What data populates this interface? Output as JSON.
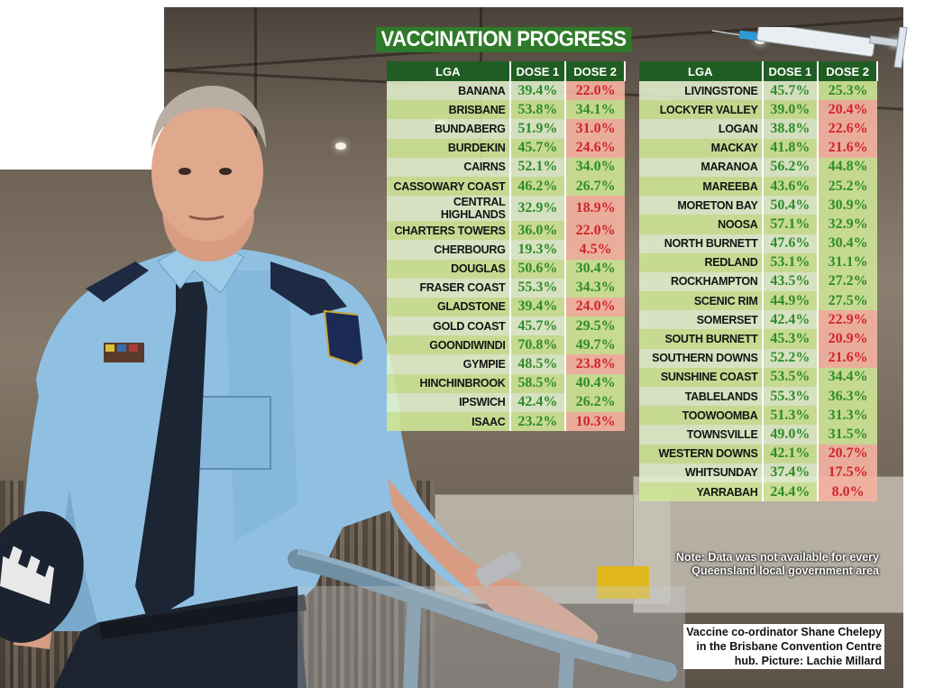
{
  "title": "VACCINATION PROGRESS",
  "chart_data": {
    "type": "table",
    "columns": [
      "LGA",
      "DOSE 1",
      "DOSE 2"
    ],
    "tables": [
      {
        "rows": [
          {
            "lga": "BANANA",
            "dose1": "39.4%",
            "dose2": "22.0%",
            "dose2_status": "red"
          },
          {
            "lga": "BRISBANE",
            "dose1": "53.8%",
            "dose2": "34.1%",
            "dose2_status": "green"
          },
          {
            "lga": "BUNDABERG",
            "dose1": "51.9%",
            "dose2": "31.0%",
            "dose2_status": "red"
          },
          {
            "lga": "BURDEKIN",
            "dose1": "45.7%",
            "dose2": "24.6%",
            "dose2_status": "red"
          },
          {
            "lga": "CAIRNS",
            "dose1": "52.1%",
            "dose2": "34.0%",
            "dose2_status": "green"
          },
          {
            "lga": "CASSOWARY COAST",
            "dose1": "46.2%",
            "dose2": "26.7%",
            "dose2_status": "green"
          },
          {
            "lga": "CENTRAL HIGHLANDS",
            "dose1": "32.9%",
            "dose2": "18.9%",
            "dose2_status": "red"
          },
          {
            "lga": "CHARTERS TOWERS",
            "dose1": "36.0%",
            "dose2": "22.0%",
            "dose2_status": "red"
          },
          {
            "lga": "CHERBOURG",
            "dose1": "19.3%",
            "dose2": "4.5%",
            "dose2_status": "red"
          },
          {
            "lga": "DOUGLAS",
            "dose1": "50.6%",
            "dose2": "30.4%",
            "dose2_status": "green"
          },
          {
            "lga": "FRASER COAST",
            "dose1": "55.3%",
            "dose2": "34.3%",
            "dose2_status": "green"
          },
          {
            "lga": "GLADSTONE",
            "dose1": "39.4%",
            "dose2": "24.0%",
            "dose2_status": "red"
          },
          {
            "lga": "GOLD COAST",
            "dose1": "45.7%",
            "dose2": "29.5%",
            "dose2_status": "green"
          },
          {
            "lga": "GOONDIWINDI",
            "dose1": "70.8%",
            "dose2": "49.7%",
            "dose2_status": "green"
          },
          {
            "lga": "GYMPIE",
            "dose1": "48.5%",
            "dose2": "23.8%",
            "dose2_status": "red"
          },
          {
            "lga": "HINCHINBROOK",
            "dose1": "58.5%",
            "dose2": "40.4%",
            "dose2_status": "green"
          },
          {
            "lga": "IPSWICH",
            "dose1": "42.4%",
            "dose2": "26.2%",
            "dose2_status": "green"
          },
          {
            "lga": "ISAAC",
            "dose1": "23.2%",
            "dose2": "10.3%",
            "dose2_status": "red"
          }
        ]
      },
      {
        "rows": [
          {
            "lga": "LIVINGSTONE",
            "dose1": "45.7%",
            "dose2": "25.3%",
            "dose2_status": "green"
          },
          {
            "lga": "LOCKYER VALLEY",
            "dose1": "39.0%",
            "dose2": "20.4%",
            "dose2_status": "red"
          },
          {
            "lga": "LOGAN",
            "dose1": "38.8%",
            "dose2": "22.6%",
            "dose2_status": "red"
          },
          {
            "lga": "MACKAY",
            "dose1": "41.8%",
            "dose2": "21.6%",
            "dose2_status": "red"
          },
          {
            "lga": "MARANOA",
            "dose1": "56.2%",
            "dose2": "44.8%",
            "dose2_status": "green"
          },
          {
            "lga": "MAREEBA",
            "dose1": "43.6%",
            "dose2": "25.2%",
            "dose2_status": "green"
          },
          {
            "lga": "MORETON BAY",
            "dose1": "50.4%",
            "dose2": "30.9%",
            "dose2_status": "green"
          },
          {
            "lga": "NOOSA",
            "dose1": "57.1%",
            "dose2": "32.9%",
            "dose2_status": "green"
          },
          {
            "lga": "NORTH BURNETT",
            "dose1": "47.6%",
            "dose2": "30.4%",
            "dose2_status": "green"
          },
          {
            "lga": "REDLAND",
            "dose1": "53.1%",
            "dose2": "31.1%",
            "dose2_status": "green"
          },
          {
            "lga": "ROCKHAMPTON",
            "dose1": "43.5%",
            "dose2": "27.2%",
            "dose2_status": "green"
          },
          {
            "lga": "SCENIC RIM",
            "dose1": "44.9%",
            "dose2": "27.5%",
            "dose2_status": "green"
          },
          {
            "lga": "SOMERSET",
            "dose1": "42.4%",
            "dose2": "22.9%",
            "dose2_status": "red"
          },
          {
            "lga": "SOUTH BURNETT",
            "dose1": "45.3%",
            "dose2": "20.9%",
            "dose2_status": "red"
          },
          {
            "lga": "SOUTHERN DOWNS",
            "dose1": "52.2%",
            "dose2": "21.6%",
            "dose2_status": "red"
          },
          {
            "lga": "SUNSHINE COAST",
            "dose1": "53.5%",
            "dose2": "34.4%",
            "dose2_status": "green"
          },
          {
            "lga": "TABLELANDS",
            "dose1": "55.3%",
            "dose2": "36.3%",
            "dose2_status": "green"
          },
          {
            "lga": "TOOWOOMBA",
            "dose1": "51.3%",
            "dose2": "31.3%",
            "dose2_status": "green"
          },
          {
            "lga": "TOWNSVILLE",
            "dose1": "49.0%",
            "dose2": "31.5%",
            "dose2_status": "green"
          },
          {
            "lga": "WESTERN DOWNS",
            "dose1": "42.1%",
            "dose2": "20.7%",
            "dose2_status": "red"
          },
          {
            "lga": "WHITSUNDAY",
            "dose1": "37.4%",
            "dose2": "17.5%",
            "dose2_status": "red"
          },
          {
            "lga": "YARRABAH",
            "dose1": "24.4%",
            "dose2": "8.0%",
            "dose2_status": "red"
          }
        ]
      }
    ],
    "colors": {
      "header": "#1f5d22",
      "green_text": "#2f8b2a",
      "red_text": "#d0242a",
      "red_cell": "#f4b2a0",
      "green_cell": "#cee496",
      "title_bg": "#2f7a2a"
    }
  },
  "note": "Note: Data was not available for every Queensland local government area",
  "caption_lines": [
    "Vaccine co-ordinator Shane Chelepy",
    "in the Brisbane Convention Centre",
    "hub. Picture: Lachie Millard"
  ]
}
